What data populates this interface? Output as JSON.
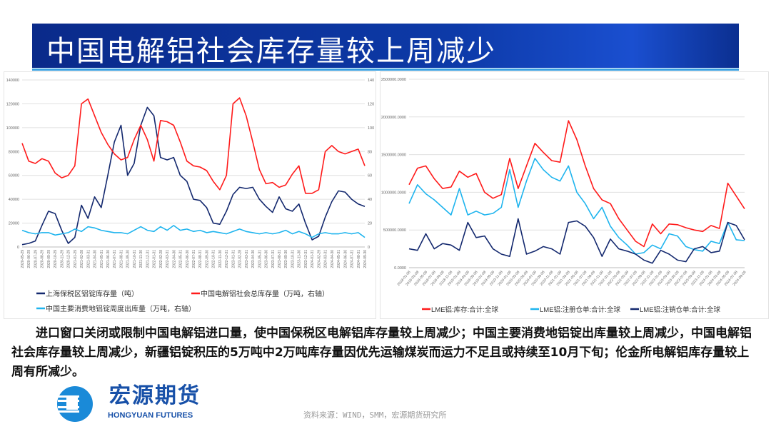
{
  "header": {
    "title": "中国电解铝社会库存量较上周减少"
  },
  "body_text": "进口窗口关闭或限制中国电解铝进口量，使中国保税区电解铝库存量较上周减少；中国主要消费地铝锭出库量较上周减少，中国电解铝社会库存量较上周减少，新疆铝锭积压的5万吨中2万吨库存量因优先运输煤炭而运力不足且或持续至10月下旬；伦金所电解铝库存量较上周有所减少。",
  "logo": {
    "cn": "宏源期货",
    "en": "HONGYUAN FUTURES"
  },
  "source": "资料来源：WIND，SMM，宏源期货研究所",
  "chart_data": [
    {
      "type": "line",
      "title": "",
      "ylim_left": [
        0,
        140000
      ],
      "ylim_right": [
        0,
        140
      ],
      "yticks_left": [
        "0",
        "20000",
        "40000",
        "60000",
        "80000",
        "100000",
        "120000",
        "140000"
      ],
      "yticks_right": [
        "0",
        "20",
        "40",
        "60",
        "80",
        "100",
        "120",
        "140"
      ],
      "categories": [
        "2020-05-29",
        "2020-06-29",
        "2020-07-29",
        "2020-08-29",
        "2020-09-29",
        "2020-10-29",
        "2020-11-29",
        "2020-12-29",
        "2021-01-29",
        "2021-02-28",
        "2021-03-31",
        "2021-04-30",
        "2021-05-31",
        "2021-06-30",
        "2021-07-31",
        "2021-08-31",
        "2021-09-30",
        "2021-10-31",
        "2021-11-30",
        "2021-12-31",
        "2022-01-31",
        "2022-02-28",
        "2022-03-31",
        "2022-04-30",
        "2022-05-31",
        "2022-06-30",
        "2022-07-31",
        "2022-08-31",
        "2022-09-30",
        "2022-10-31",
        "2022-11-30",
        "2022-12-31",
        "2023-01-31",
        "2023-02-28",
        "2023-03-31",
        "2023-04-30",
        "2023-05-31",
        "2023-06-30",
        "2023-07-31",
        "2023-08-31",
        "2023-09-30",
        "2023-10-31",
        "2023-11-30",
        "2023-12-31",
        "2024-01-31",
        "2024-02-29",
        "2024-03-31",
        "2024-04-30",
        "2024-05-31",
        "2024-06-30",
        "2024-07-31",
        "2024-08-31",
        "2024-09-30"
      ],
      "series": [
        {
          "name": "上海保税区铝锭库存量（吨）",
          "axis": "left",
          "color": "#13286e",
          "values": [
            2000,
            3000,
            5000,
            18000,
            30000,
            28000,
            14000,
            3000,
            8000,
            35000,
            24000,
            42000,
            33000,
            60000,
            88000,
            102000,
            60000,
            70000,
            102000,
            117000,
            110000,
            75000,
            73000,
            75000,
            60000,
            55000,
            40000,
            39000,
            33000,
            20000,
            19000,
            30000,
            44000,
            50000,
            49000,
            50000,
            40000,
            34000,
            29000,
            42000,
            32000,
            30000,
            36000,
            20000,
            6000,
            9000,
            25000,
            38000,
            47000,
            46000,
            40000,
            36000,
            34000
          ]
        },
        {
          "name": "中国电解铝社会总库存量（万吨，右轴）",
          "axis": "right",
          "color": "#ff1a1a",
          "values": [
            87,
            72,
            70,
            74,
            72,
            62,
            58,
            60,
            68,
            120,
            124,
            110,
            96,
            86,
            78,
            73,
            75,
            90,
            102,
            90,
            72,
            106,
            105,
            102,
            88,
            72,
            68,
            67,
            64,
            55,
            48,
            60,
            120,
            125,
            110,
            88,
            65,
            53,
            54,
            50,
            52,
            61,
            68,
            45,
            45,
            48,
            80,
            85,
            80,
            78,
            80,
            82,
            68
          ]
        },
        {
          "name": "中国主要消费地铝锭周度出库量（万吨，右轴）",
          "axis": "right",
          "color": "#1eb4ee",
          "values": [
            14,
            12,
            11,
            12,
            12,
            10,
            11,
            12,
            15,
            13,
            17,
            16,
            14,
            13,
            12,
            12,
            11,
            14,
            17,
            14,
            13,
            17,
            14,
            18,
            14,
            15,
            13,
            14,
            12,
            13,
            12,
            11,
            13,
            15,
            13,
            12,
            11,
            12,
            11,
            12,
            14,
            11,
            13,
            11,
            8,
            11,
            12,
            11,
            11,
            12,
            11,
            12,
            8
          ]
        }
      ]
    },
    {
      "type": "line",
      "title": "",
      "ylim": [
        0,
        2500000
      ],
      "yticks": [
        "0.0000",
        "500000.0000",
        "1000000.0000",
        "1500000.0000",
        "2000000.0000",
        "2500000.0000"
      ],
      "categories": [
        "2018-01-08",
        "2018-03-08",
        "2018-05-08",
        "2018-07-08",
        "2018-09-08",
        "2018-11-08",
        "2019-01-08",
        "2019-03-08",
        "2019-05-08",
        "2019-07-08",
        "2019-09-08",
        "2019-11-08",
        "2020-01-08",
        "2020-03-08",
        "2020-05-08",
        "2020-07-08",
        "2020-09-08",
        "2020-11-08",
        "2021-01-08",
        "2021-03-08",
        "2021-05-08",
        "2021-07-08",
        "2021-09-08",
        "2021-11-08",
        "2022-01-08",
        "2022-03-08",
        "2022-05-08",
        "2022-07-08",
        "2022-09-08",
        "2022-11-08",
        "2023-01-08",
        "2023-03-08",
        "2023-05-08",
        "2023-07-08",
        "2023-09-08",
        "2023-11-08",
        "2024-01-08",
        "2024-03-08",
        "2024-05-08",
        "2024-07-08",
        "2024-09-06"
      ],
      "series": [
        {
          "name": "LME铝:库存:合计:全球",
          "color": "#ff1a1a",
          "values": [
            1100000,
            1320000,
            1350000,
            1180000,
            1050000,
            1070000,
            1280000,
            1200000,
            1250000,
            1000000,
            920000,
            970000,
            1450000,
            1050000,
            1350000,
            1650000,
            1530000,
            1420000,
            1400000,
            1950000,
            1700000,
            1350000,
            1050000,
            900000,
            850000,
            650000,
            500000,
            350000,
            280000,
            580000,
            450000,
            580000,
            570000,
            530000,
            500000,
            480000,
            560000,
            520000,
            1120000,
            950000,
            780000
          ]
        },
        {
          "name": "LME铝:注册仓单:合计:全球",
          "color": "#1eb4ee",
          "values": [
            850000,
            1100000,
            980000,
            900000,
            800000,
            700000,
            1050000,
            700000,
            750000,
            700000,
            720000,
            800000,
            1300000,
            800000,
            1150000,
            1450000,
            1300000,
            1200000,
            1150000,
            1350000,
            1000000,
            850000,
            650000,
            800000,
            550000,
            400000,
            300000,
            180000,
            200000,
            300000,
            250000,
            450000,
            420000,
            280000,
            240000,
            220000,
            350000,
            320000,
            600000,
            370000,
            360000
          ]
        },
        {
          "name": "LME铝:注销仓单:合计:全球",
          "color": "#13286e",
          "values": [
            250000,
            230000,
            450000,
            250000,
            320000,
            300000,
            230000,
            600000,
            400000,
            420000,
            250000,
            180000,
            150000,
            650000,
            180000,
            220000,
            280000,
            250000,
            180000,
            600000,
            620000,
            550000,
            400000,
            150000,
            380000,
            250000,
            220000,
            180000,
            100000,
            60000,
            230000,
            180000,
            100000,
            80000,
            250000,
            280000,
            200000,
            220000,
            600000,
            560000,
            370000
          ]
        }
      ]
    }
  ]
}
